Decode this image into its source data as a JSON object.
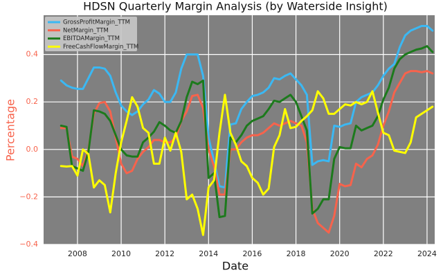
{
  "chart_data": {
    "type": "line",
    "title": "HDSN Quarterly Margin Analysis (by Waterside Insight)",
    "xlabel": "Date",
    "ylabel": "Percentage",
    "xlim": [
      2006.45,
      2024.35
    ],
    "ylim": [
      -0.4,
      0.565
    ],
    "xticks": [
      2008,
      2010,
      2012,
      2014,
      2016,
      2018,
      2020,
      2022,
      2024
    ],
    "yticks": [
      {
        "value": -0.4,
        "label": "−0.4"
      },
      {
        "value": -0.2,
        "label": "−0.2"
      },
      {
        "value": 0,
        "label": "0.0"
      },
      0.2,
      0.4
    ],
    "grid": true,
    "legend": "upper left",
    "x": [
      2007.25,
      2007.5,
      2007.75,
      2008,
      2008.25,
      2008.5,
      2008.75,
      2009,
      2009.25,
      2009.5,
      2009.75,
      2010,
      2010.25,
      2010.5,
      2010.75,
      2011,
      2011.25,
      2011.5,
      2011.75,
      2012,
      2012.25,
      2012.5,
      2012.75,
      2013,
      2013.25,
      2013.5,
      2013.75,
      2014,
      2014.25,
      2014.5,
      2014.75,
      2015,
      2015.25,
      2015.5,
      2015.75,
      2016,
      2016.25,
      2016.5,
      2016.75,
      2017,
      2017.25,
      2017.5,
      2017.75,
      2018,
      2018.25,
      2018.5,
      2018.75,
      2019,
      2019.25,
      2019.5,
      2019.75,
      2020,
      2020.25,
      2020.5,
      2020.75,
      2021,
      2021.25,
      2021.5,
      2021.75,
      2022,
      2022.25,
      2022.5,
      2022.75,
      2023,
      2023.25,
      2023.5,
      2023.75,
      2024,
      2024.25
    ],
    "series": [
      {
        "name": "GrossProfitMargin_TTM",
        "color": "#3bb8f3",
        "values": [
          0.29,
          0.27,
          0.26,
          0.255,
          0.255,
          0.3,
          0.345,
          0.345,
          0.34,
          0.31,
          0.24,
          0.185,
          0.16,
          0.145,
          0.16,
          0.19,
          0.21,
          0.25,
          0.235,
          0.2,
          0.2,
          0.24,
          0.34,
          0.4,
          0.4,
          0.4,
          0.31,
          0.05,
          -0.05,
          -0.155,
          -0.16,
          0.105,
          0.11,
          0.17,
          0.2,
          0.225,
          0.23,
          0.24,
          0.26,
          0.3,
          0.295,
          0.31,
          0.32,
          0.295,
          0.27,
          0.23,
          -0.065,
          -0.05,
          -0.045,
          -0.05,
          0.1,
          0.095,
          0.105,
          0.11,
          0.2,
          0.22,
          0.23,
          0.24,
          0.27,
          0.31,
          0.34,
          0.36,
          0.43,
          0.48,
          0.5,
          0.51,
          0.52,
          0.52,
          0.5
        ]
      },
      {
        "name": "NetMargin_TTM",
        "color": "#f7634c",
        "values": [
          0.09,
          0.09,
          -0.03,
          -0.04,
          -0.07,
          0.0,
          0.15,
          0.195,
          0.2,
          0.16,
          0.05,
          -0.06,
          -0.1,
          -0.09,
          -0.04,
          -0.01,
          0.01,
          0.04,
          0.04,
          0.03,
          0.03,
          0.05,
          0.12,
          0.16,
          0.225,
          0.23,
          0.175,
          0.0,
          -0.07,
          -0.19,
          -0.19,
          0.0,
          0.0,
          0.03,
          0.05,
          0.06,
          0.06,
          0.07,
          0.09,
          0.11,
          0.1,
          0.11,
          0.12,
          0.11,
          0.1,
          0.03,
          -0.25,
          -0.31,
          -0.33,
          -0.35,
          -0.28,
          -0.145,
          -0.155,
          -0.15,
          -0.06,
          -0.075,
          -0.04,
          -0.025,
          0.02,
          0.1,
          0.16,
          0.24,
          0.28,
          0.32,
          0.33,
          0.33,
          0.325,
          0.33,
          0.32
        ]
      },
      {
        "name": "EBITDAMargin_TTM",
        "color": "#1c7a1c",
        "values": [
          0.1,
          0.095,
          -0.07,
          -0.08,
          -0.09,
          -0.01,
          0.165,
          0.16,
          0.15,
          0.12,
          0.06,
          0.0,
          -0.025,
          -0.03,
          -0.03,
          0.03,
          0.05,
          0.075,
          0.115,
          0.1,
          0.08,
          0.07,
          0.12,
          0.22,
          0.285,
          0.275,
          0.29,
          -0.12,
          -0.1,
          -0.285,
          -0.28,
          0.05,
          0.03,
          0.06,
          0.1,
          0.12,
          0.13,
          0.14,
          0.17,
          0.205,
          0.2,
          0.215,
          0.23,
          0.2,
          0.14,
          0.08,
          -0.27,
          -0.25,
          -0.21,
          -0.21,
          -0.04,
          0.01,
          0.005,
          0.005,
          0.1,
          0.08,
          0.09,
          0.1,
          0.14,
          0.21,
          0.26,
          0.34,
          0.38,
          0.4,
          0.41,
          0.42,
          0.425,
          0.435,
          0.41
        ]
      },
      {
        "name": "FreeCashFlowMargin_TTM",
        "color": "#ffff00",
        "values": [
          -0.07,
          -0.072,
          -0.07,
          -0.11,
          0.0,
          -0.02,
          -0.16,
          -0.13,
          -0.15,
          -0.265,
          -0.1,
          0.03,
          0.12,
          0.22,
          0.18,
          0.09,
          0.07,
          -0.06,
          -0.06,
          0.05,
          -0.005,
          0.07,
          -0.01,
          -0.21,
          -0.19,
          -0.25,
          -0.36,
          -0.16,
          -0.13,
          0.07,
          0.23,
          0.07,
          0.02,
          -0.05,
          -0.07,
          -0.12,
          -0.14,
          -0.19,
          -0.165,
          0.01,
          0.06,
          0.17,
          0.09,
          0.095,
          0.12,
          0.14,
          0.165,
          0.245,
          0.215,
          0.15,
          0.15,
          0.17,
          0.19,
          0.185,
          0.2,
          0.19,
          0.2,
          0.245,
          0.155,
          0.07,
          0.06,
          -0.005,
          -0.01,
          -0.015,
          0.03,
          0.135,
          0.15,
          0.165,
          0.18
        ]
      }
    ]
  }
}
